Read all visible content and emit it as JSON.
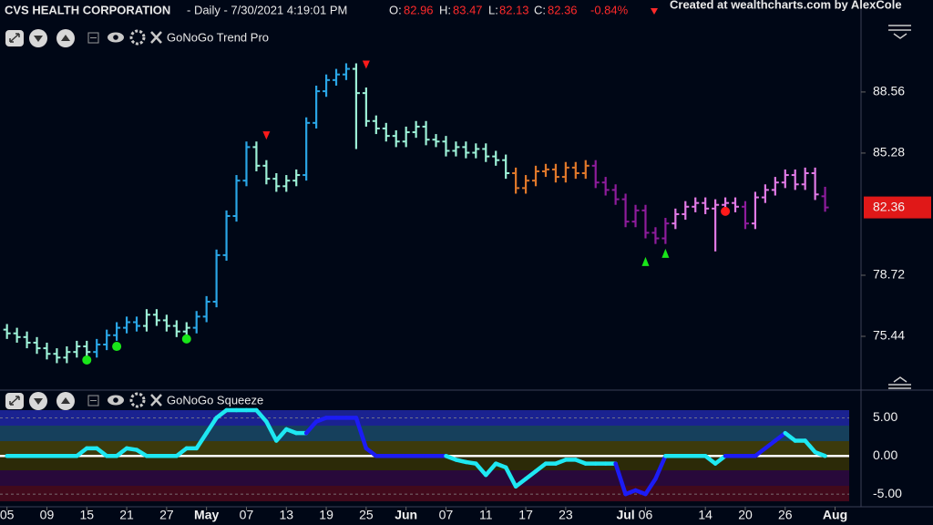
{
  "chart_data": [
    {
      "type": "ohlc",
      "title": "CVS HEALTH CORPORATION",
      "subtitle": " - Daily - 7/30/2021 4:19:01 PM",
      "indicator": "GoNoGo Trend Pro",
      "ohlc_labels": [
        "O:",
        "H:",
        "L:",
        "C:"
      ],
      "change": "-0.84%",
      "annotations": [
        "Created at wealthcharts.com by AlexCole"
      ],
      "xlim": [
        -0.7,
        85.6
      ],
      "ylim": [
        72.7,
        92.03
      ],
      "yticks": [
        75.44,
        78.72,
        85.28,
        88.56
      ],
      "x": [
        0,
        1,
        2,
        3,
        4,
        5,
        6,
        7,
        8,
        9,
        10,
        11,
        12,
        13,
        14,
        15,
        16,
        17,
        18,
        19,
        20,
        21,
        22,
        23,
        24,
        25,
        26,
        27,
        28,
        29,
        30,
        31,
        32,
        33,
        34,
        35,
        36,
        37,
        38,
        39,
        40,
        41,
        42,
        43,
        44,
        45,
        46,
        47,
        48,
        49,
        50,
        51,
        52,
        53,
        54,
        55,
        56,
        57,
        58,
        59,
        60,
        61,
        62,
        63,
        64,
        65,
        66,
        67,
        68,
        69,
        70,
        71,
        72,
        73,
        74,
        75,
        76,
        77,
        78,
        79,
        80,
        81,
        82
      ],
      "open": [
        75.8,
        75.6,
        75.4,
        75.1,
        74.8,
        74.5,
        74.3,
        74.6,
        74.9,
        74.6,
        75.0,
        75.5,
        75.9,
        76.2,
        76.0,
        76.6,
        76.3,
        76.0,
        75.7,
        75.9,
        76.5,
        77.3,
        79.8,
        81.9,
        83.8,
        85.6,
        84.6,
        83.9,
        83.5,
        83.8,
        84.1,
        86.9,
        88.6,
        89.2,
        89.5,
        89.8,
        88.5,
        87.0,
        86.6,
        86.2,
        85.9,
        86.4,
        86.7,
        86.0,
        85.9,
        85.4,
        85.6,
        85.3,
        85.5,
        85.1,
        84.9,
        84.2,
        83.4,
        83.8,
        84.3,
        84.4,
        84.0,
        84.5,
        84.2,
        84.6,
        83.7,
        83.3,
        82.8,
        81.6,
        82.2,
        81.0,
        80.7,
        81.5,
        82.0,
        82.4,
        82.6,
        82.3,
        82.5,
        82.6,
        82.4,
        81.5,
        82.9,
        83.3,
        83.7,
        84.1,
        83.6,
        84.2,
        82.96
      ],
      "high": [
        76.1,
        75.9,
        75.7,
        75.4,
        75.1,
        74.8,
        74.9,
        75.2,
        75.2,
        75.3,
        75.8,
        76.2,
        76.5,
        76.5,
        76.9,
        76.9,
        76.6,
        76.3,
        76.2,
        76.8,
        77.6,
        80.1,
        82.2,
        84.1,
        85.9,
        85.9,
        84.9,
        84.2,
        84.1,
        84.4,
        87.2,
        88.9,
        89.5,
        89.8,
        90.1,
        90.1,
        88.8,
        87.3,
        86.9,
        86.5,
        86.7,
        87.0,
        87.0,
        86.3,
        86.2,
        85.9,
        85.9,
        85.8,
        85.8,
        85.4,
        85.2,
        84.5,
        84.1,
        84.6,
        84.7,
        84.7,
        84.8,
        84.8,
        84.9,
        84.9,
        84.0,
        83.6,
        83.1,
        82.5,
        82.5,
        81.3,
        81.8,
        82.3,
        82.7,
        82.9,
        82.9,
        82.8,
        82.9,
        82.9,
        82.7,
        83.2,
        83.6,
        84.0,
        84.4,
        84.4,
        84.5,
        84.5,
        83.47
      ],
      "low": [
        75.3,
        75.1,
        74.8,
        74.5,
        74.2,
        74.0,
        74.0,
        74.3,
        74.3,
        74.3,
        74.7,
        75.2,
        75.6,
        75.7,
        75.7,
        76.0,
        75.7,
        75.4,
        75.4,
        75.6,
        76.2,
        77.0,
        79.5,
        81.6,
        83.5,
        84.3,
        83.6,
        83.2,
        83.2,
        83.5,
        83.8,
        86.6,
        88.3,
        88.9,
        89.2,
        85.5,
        86.7,
        86.3,
        85.9,
        85.6,
        85.6,
        86.1,
        85.7,
        85.6,
        85.1,
        85.1,
        85.0,
        85.0,
        84.8,
        84.6,
        83.9,
        83.1,
        83.1,
        83.5,
        84.0,
        83.7,
        83.7,
        83.9,
        83.9,
        83.4,
        83.0,
        82.5,
        81.3,
        81.3,
        80.7,
        80.4,
        80.4,
        81.2,
        81.7,
        82.1,
        82.0,
        80.0,
        82.2,
        82.1,
        81.2,
        81.2,
        82.6,
        83.0,
        83.4,
        83.3,
        83.3,
        82.76,
        82.13
      ],
      "close": [
        75.6,
        75.4,
        75.1,
        74.8,
        74.5,
        74.3,
        74.6,
        74.9,
        74.6,
        75.0,
        75.5,
        75.9,
        76.2,
        76.0,
        76.6,
        76.3,
        76.0,
        75.7,
        75.9,
        76.5,
        77.3,
        79.8,
        81.9,
        83.8,
        85.6,
        84.6,
        83.9,
        83.5,
        83.8,
        84.1,
        86.9,
        88.6,
        89.2,
        89.5,
        89.8,
        88.5,
        87.0,
        86.6,
        86.2,
        85.9,
        86.4,
        86.7,
        86.0,
        85.9,
        85.4,
        85.6,
        85.3,
        85.5,
        85.1,
        84.9,
        84.2,
        83.4,
        83.8,
        84.3,
        84.4,
        84.0,
        84.5,
        84.2,
        84.6,
        83.7,
        83.3,
        82.8,
        81.6,
        82.2,
        81.0,
        80.7,
        81.5,
        82.0,
        82.4,
        82.6,
        82.3,
        82.5,
        82.6,
        82.4,
        81.5,
        82.9,
        83.3,
        83.7,
        84.1,
        83.6,
        84.2,
        83.06,
        82.36
      ],
      "colors": [
        "#9cf0d6",
        "#9cf0d6",
        "#9cf0d6",
        "#9cf0d6",
        "#9cf0d6",
        "#9cf0d6",
        "#9cf0d6",
        "#9cf0d6",
        "#9cf0d6",
        "#2aa6e6",
        "#2aa6e6",
        "#2aa6e6",
        "#2aa6e6",
        "#2aa6e6",
        "#9cf0d6",
        "#9cf0d6",
        "#9cf0d6",
        "#9cf0d6",
        "#9cf0d6",
        "#2aa6e6",
        "#2aa6e6",
        "#2aa6e6",
        "#2aa6e6",
        "#2aa6e6",
        "#2aa6e6",
        "#9cf0d6",
        "#9cf0d6",
        "#9cf0d6",
        "#9cf0d6",
        "#9cf0d6",
        "#2aa6e6",
        "#2aa6e6",
        "#2aa6e6",
        "#2aa6e6",
        "#2aa6e6",
        "#9cf0d6",
        "#9cf0d6",
        "#9cf0d6",
        "#9cf0d6",
        "#9cf0d6",
        "#9cf0d6",
        "#9cf0d6",
        "#9cf0d6",
        "#9cf0d6",
        "#9cf0d6",
        "#9cf0d6",
        "#9cf0d6",
        "#9cf0d6",
        "#9cf0d6",
        "#9cf0d6",
        "#9cf0d6",
        "#e0782a",
        "#e0782a",
        "#e0782a",
        "#e0782a",
        "#e0782a",
        "#e0782a",
        "#e0782a",
        "#e0782a",
        "#8e1c9c",
        "#8e1c9c",
        "#8e1c9c",
        "#8e1c9c",
        "#8e1c9c",
        "#8e1c9c",
        "#8e1c9c",
        "#8e1c9c",
        "#e27ae6",
        "#e27ae6",
        "#e27ae6",
        "#e27ae6",
        "#e27ae6",
        "#e27ae6",
        "#e27ae6",
        "#8e1c9c",
        "#e27ae6",
        "#e27ae6",
        "#e27ae6",
        "#e27ae6",
        "#e27ae6",
        "#e27ae6",
        "#e27ae6",
        "#8e1c9c"
      ],
      "last_price_color": "#e01818",
      "markers": {
        "x": [
          26,
          36,
          64,
          66,
          8,
          11,
          18,
          72
        ],
        "y": [
          86.2,
          90.0,
          79.46,
          79.9,
          74.17,
          74.9,
          75.3,
          82.15
        ],
        "shapes": [
          "triangle-down",
          "triangle-down",
          "triangle-up",
          "triangle-up",
          "circle",
          "circle",
          "circle",
          "circle"
        ],
        "colors": [
          "#ff1a1a",
          "#ff1a1a",
          "#19e619",
          "#19e619",
          "#19e619",
          "#19e619",
          "#19e619",
          "#ff1a1a"
        ]
      }
    },
    {
      "type": "line",
      "title": "GoNoGo Squeeze",
      "xlim": [
        -0.7,
        85.6
      ],
      "ylim": [
        -6.3,
        6
      ],
      "yticks": [
        {
          "value": 5,
          "label": "5.00"
        },
        {
          "value": 0,
          "label": "0.00"
        },
        {
          "value": -5,
          "label": "-5.00"
        }
      ],
      "xticks": [
        {
          "value": 0,
          "label": "05"
        },
        {
          "value": 4,
          "label": "09"
        },
        {
          "value": 8,
          "label": "15"
        },
        {
          "value": 12,
          "label": "21"
        },
        {
          "value": 16,
          "label": "27"
        },
        {
          "value": 20,
          "label": "May"
        },
        {
          "value": 24,
          "label": "07"
        },
        {
          "value": 28,
          "label": "13"
        },
        {
          "value": 32,
          "label": "19"
        },
        {
          "value": 36,
          "label": "25"
        },
        {
          "value": 40,
          "label": "Jun"
        },
        {
          "value": 44,
          "label": "07"
        },
        {
          "value": 48,
          "label": "11"
        },
        {
          "value": 52,
          "label": "17"
        },
        {
          "value": 56,
          "label": "23"
        },
        {
          "value": 62,
          "label": "Jul"
        },
        {
          "value": 64,
          "label": "06"
        },
        {
          "value": 70,
          "label": "14"
        },
        {
          "value": 74,
          "label": "20"
        },
        {
          "value": 78,
          "label": "26"
        },
        {
          "value": 83,
          "label": "Aug"
        }
      ],
      "zero_line": true,
      "x": [
        0,
        1,
        2,
        3,
        4,
        5,
        6,
        7,
        8,
        9,
        10,
        11,
        12,
        13,
        14,
        15,
        16,
        17,
        18,
        19,
        20,
        21,
        22,
        23,
        24,
        25,
        26,
        27,
        28,
        29,
        30,
        31,
        32,
        33,
        34,
        35,
        36,
        37,
        38,
        39,
        40,
        41,
        42,
        43,
        44,
        45,
        46,
        47,
        48,
        49,
        50,
        51,
        52,
        53,
        54,
        55,
        56,
        57,
        58,
        59,
        60,
        61,
        62,
        63,
        64,
        65,
        66,
        67,
        68,
        69,
        70,
        71,
        72,
        73,
        74,
        75,
        76,
        77,
        78,
        79,
        80,
        81,
        82
      ],
      "values": [
        0,
        0,
        0,
        0,
        0,
        0,
        0,
        0,
        1,
        1,
        0,
        0,
        1,
        0.8,
        0,
        0,
        0,
        0,
        1,
        1,
        3,
        5,
        6,
        6,
        6,
        6,
        4.5,
        2,
        3.5,
        3,
        3,
        4.5,
        5,
        5,
        5,
        5,
        1,
        0,
        0,
        0,
        0,
        0,
        0,
        0,
        0,
        -0.5,
        -0.8,
        -1,
        -2.5,
        -1,
        -1.5,
        -4,
        -3,
        -2,
        -1,
        -1,
        -0.5,
        -0.5,
        -1,
        -1,
        -1,
        -1,
        -5,
        -4.5,
        -5,
        -3,
        0,
        0,
        0,
        0,
        0,
        -1,
        0,
        0,
        0,
        0,
        1,
        2,
        3,
        2,
        2,
        0.5,
        0
      ],
      "colors": [
        "#1ee8f2",
        "#1ee8f2",
        "#1ee8f2",
        "#1ee8f2",
        "#1ee8f2",
        "#1ee8f2",
        "#1ee8f2",
        "#1ee8f2",
        "#1ee8f2",
        "#1ee8f2",
        "#1ee8f2",
        "#1ee8f2",
        "#1ee8f2",
        "#1ee8f2",
        "#1ee8f2",
        "#1ee8f2",
        "#1ee8f2",
        "#1ee8f2",
        "#1ee8f2",
        "#1ee8f2",
        "#1ee8f2",
        "#1ee8f2",
        "#1ee8f2",
        "#1ee8f2",
        "#1ee8f2",
        "#1ee8f2",
        "#1ee8f2",
        "#1ee8f2",
        "#1ee8f2",
        "#1ee8f2",
        "#1ee8f2",
        "#1c1cf5",
        "#1c1cf5",
        "#1c1cf5",
        "#1c1cf5",
        "#1c1cf5",
        "#1c1cf5",
        "#1c1cf5",
        "#1c1cf5",
        "#1c1cf5",
        "#1c1cf5",
        "#1c1cf5",
        "#1c1cf5",
        "#1c1cf5",
        "#1c1cf5",
        "#1ee8f2",
        "#1ee8f2",
        "#1ee8f2",
        "#1ee8f2",
        "#1ee8f2",
        "#1ee8f2",
        "#1ee8f2",
        "#1ee8f2",
        "#1ee8f2",
        "#1ee8f2",
        "#1ee8f2",
        "#1ee8f2",
        "#1ee8f2",
        "#1ee8f2",
        "#1ee8f2",
        "#1ee8f2",
        "#1ee8f2",
        "#1c1cf5",
        "#1c1cf5",
        "#1c1cf5",
        "#1c1cf5",
        "#1c1cf5",
        "#1ee8f2",
        "#1ee8f2",
        "#1ee8f2",
        "#1ee8f2",
        "#1ee8f2",
        "#1ee8f2",
        "#1c1cf5",
        "#1c1cf5",
        "#1c1cf5",
        "#1c1cf5",
        "#1c1cf5",
        "#1c1cf5",
        "#1ee8f2",
        "#1ee8f2",
        "#1ee8f2",
        "#1ee8f2"
      ]
    }
  ]
}
